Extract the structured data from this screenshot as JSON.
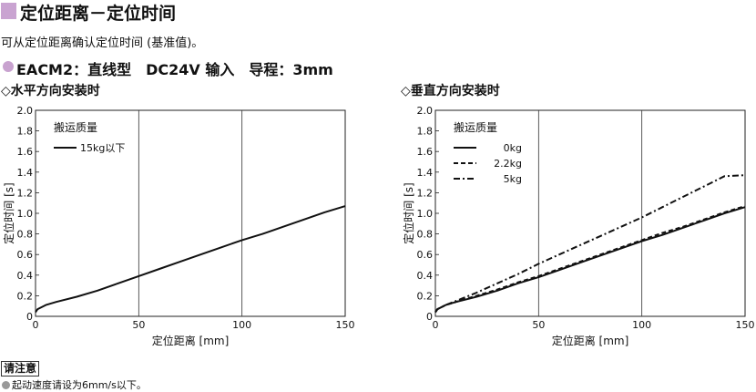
{
  "header": {
    "title": "定位距离－定位时间",
    "subtitle": "可从定位距离确认定位时间 (基准值)。",
    "model_line": "EACM2：直线型　DC24V 输入　导程：3mm"
  },
  "note": {
    "label": "请注意",
    "text": "起动速度请设为6mm/s以下。"
  },
  "chart_data": [
    {
      "type": "line",
      "title": "◇水平方向安装时",
      "xlabel": "定位距离 [mm]",
      "ylabel": "定位时间 [s]",
      "xlim": [
        0,
        150
      ],
      "ylim": [
        0,
        2.0
      ],
      "xticks": [
        "0",
        "50",
        "100",
        "150"
      ],
      "yticks": [
        "0",
        "0.2",
        "0.4",
        "0.6",
        "0.8",
        "1.0",
        "1.2",
        "1.4",
        "1.6",
        "1.8",
        "2.0"
      ],
      "grid": true,
      "legend_title": "搬运质量",
      "legend_position": "top-left",
      "series": [
        {
          "name": "15kg以下",
          "style": "solid",
          "x": [
            0,
            1,
            5,
            10,
            20,
            30,
            40,
            50,
            60,
            70,
            80,
            90,
            100,
            110,
            120,
            130,
            140,
            150
          ],
          "y": [
            0.04,
            0.07,
            0.11,
            0.14,
            0.19,
            0.25,
            0.32,
            0.39,
            0.46,
            0.53,
            0.6,
            0.67,
            0.74,
            0.8,
            0.87,
            0.94,
            1.01,
            1.07
          ]
        }
      ]
    },
    {
      "type": "line",
      "title": "◇垂直方向安装时",
      "xlabel": "定位距离 [mm]",
      "ylabel": "定位时间 [s]",
      "xlim": [
        0,
        150
      ],
      "ylim": [
        0,
        2.0
      ],
      "xticks": [
        "0",
        "50",
        "100",
        "150"
      ],
      "yticks": [
        "0",
        "0.2",
        "0.4",
        "0.6",
        "0.8",
        "1.0",
        "1.2",
        "1.4",
        "1.6",
        "1.8",
        "2.0"
      ],
      "grid": true,
      "legend_title": "搬运质量",
      "legend_position": "top-left",
      "series": [
        {
          "name": "0kg",
          "style": "solid",
          "x": [
            0,
            1,
            5,
            10,
            20,
            30,
            40,
            50,
            60,
            70,
            80,
            90,
            100,
            110,
            120,
            130,
            140,
            150
          ],
          "y": [
            0.04,
            0.07,
            0.11,
            0.14,
            0.19,
            0.25,
            0.32,
            0.38,
            0.45,
            0.52,
            0.59,
            0.66,
            0.73,
            0.79,
            0.86,
            0.93,
            1.0,
            1.06
          ]
        },
        {
          "name": "2.2kg",
          "style": "dashed",
          "x": [
            0,
            1,
            5,
            10,
            20,
            30,
            40,
            50,
            60,
            70,
            80,
            90,
            100,
            110,
            120,
            130,
            140,
            150
          ],
          "y": [
            0.04,
            0.07,
            0.11,
            0.14,
            0.2,
            0.26,
            0.33,
            0.39,
            0.46,
            0.53,
            0.6,
            0.67,
            0.74,
            0.81,
            0.87,
            0.94,
            1.01,
            1.07
          ]
        },
        {
          "name": "5kg",
          "style": "dashdot",
          "x": [
            0,
            1,
            5,
            10,
            20,
            30,
            40,
            50,
            60,
            70,
            80,
            90,
            100,
            110,
            120,
            130,
            140,
            150
          ],
          "y": [
            0.04,
            0.07,
            0.11,
            0.15,
            0.23,
            0.32,
            0.41,
            0.51,
            0.6,
            0.69,
            0.78,
            0.87,
            0.96,
            1.06,
            1.16,
            1.26,
            1.36,
            1.37
          ]
        }
      ]
    }
  ]
}
